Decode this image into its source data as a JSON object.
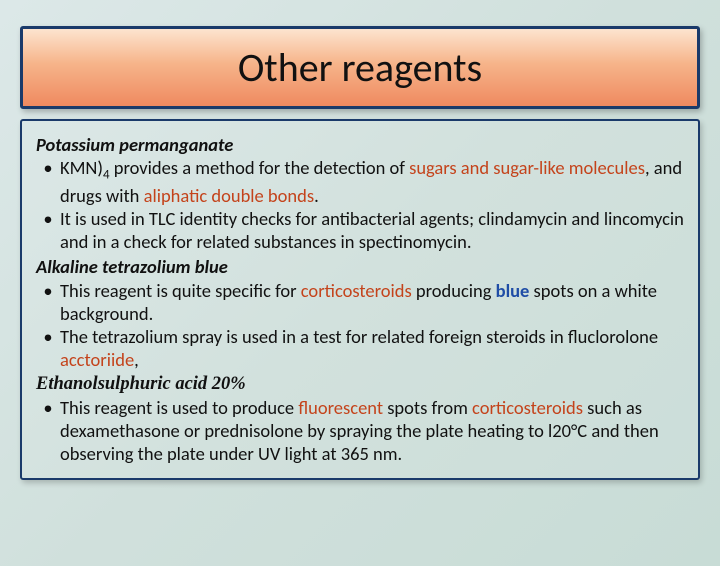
{
  "title": "Other reagents",
  "section1": {
    "heading": "Potassium permanganate",
    "b1_a": "KMN)",
    "b1_sub": "4",
    "b1_b": " provides a method for the detection of ",
    "b1_hl1": "sugars and sugar-like molecules",
    "b1_c": ", and drugs with ",
    "b1_hl2": "aliphatic double bonds",
    "b1_d": ".",
    "b2": "It is used in TLC identity checks for antibacterial agents; clindamycin and lincomycin and in a check for related substances in spectinomycin."
  },
  "section2": {
    "heading": "Alkaline tetrazolium blue",
    "b1_a": "This reagent is quite specific for ",
    "b1_hl1": "corticosteroids",
    "b1_b": " producing ",
    "b1_blue": "blue",
    "b1_c": " spots on a white background.",
    "b2_a": "The tetrazolium spray is used in a test for related foreign steroids in fluclorolone ",
    "b2_hl1": "acctoriide",
    "b2_b": ","
  },
  "section3": {
    "heading": "Ethanolsulphuric acid 20%",
    "b1_a": "This reagent is used to produce ",
    "b1_hl1": "fluorescent",
    "b1_b": " spots from ",
    "b1_hl2": "corticosteroids",
    "b1_c": " such as dexamethasone or prednisolone by spraying the plate heating to l20°C and then observing the plate under UV light at 365 nm."
  },
  "colors": {
    "border": "#1a3a6a",
    "highlight": "#c4431b",
    "blue": "#1f4da6",
    "title_grad_top": "#fde4cf",
    "title_grad_mid": "#f6b48a",
    "title_grad_bot": "#ef8a60",
    "bg_grad_a": "#dce8e8",
    "bg_grad_b": "#c8dcd6"
  },
  "fonts": {
    "title_size_pt": 30,
    "body_size_pt": 14
  }
}
